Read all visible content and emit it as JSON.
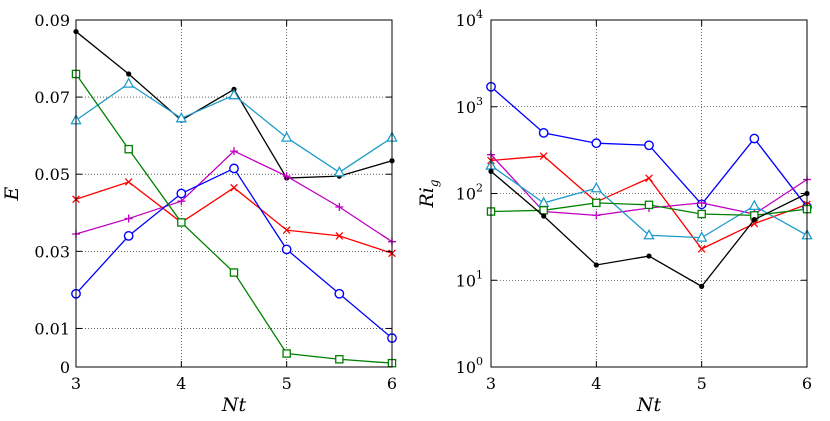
{
  "chart_data": [
    {
      "type": "line",
      "ylabel": "E",
      "xlabel": "Nt",
      "xlim": [
        3,
        6
      ],
      "ylim": [
        0,
        0.09
      ],
      "xticks": [
        "3",
        "4",
        "5",
        "6"
      ],
      "yticks": [
        "0",
        "0.01",
        "0.03",
        "0.05",
        "0.07",
        "0.09"
      ],
      "ytick_values": [
        0,
        0.01,
        0.03,
        0.05,
        0.07,
        0.09
      ],
      "grid": true,
      "x": [
        3,
        3.5,
        4,
        4.5,
        5,
        5.5,
        6
      ],
      "series": [
        {
          "color": "#000000",
          "marker": "dot",
          "values": [
            0.087,
            0.076,
            0.064,
            0.072,
            0.049,
            0.0495,
            0.0535
          ]
        },
        {
          "color": "#1f9bc8",
          "marker": "triangle",
          "values": [
            0.064,
            0.0735,
            0.0645,
            0.0705,
            0.0595,
            0.0505,
            0.0595
          ]
        },
        {
          "color": "#c000c0",
          "marker": "plus",
          "values": [
            0.0345,
            0.0385,
            0.043,
            0.056,
            0.0495,
            0.0415,
            0.0325
          ]
        },
        {
          "color": "#ff0000",
          "marker": "x",
          "values": [
            0.0435,
            0.048,
            0.0375,
            0.0465,
            0.0355,
            0.034,
            0.0295
          ]
        },
        {
          "color": "#0000ff",
          "marker": "circle",
          "values": [
            0.019,
            0.034,
            0.045,
            0.0515,
            0.0305,
            0.019,
            0.0075
          ]
        },
        {
          "color": "#008000",
          "marker": "square",
          "values": [
            0.076,
            0.0565,
            0.0375,
            0.0245,
            0.0035,
            0.002,
            0.001
          ]
        }
      ]
    },
    {
      "type": "line",
      "ylabel": "Ri_g",
      "ylabel_main": "Ri",
      "ylabel_sub": "g",
      "xlabel": "Nt",
      "xlim": [
        3,
        6
      ],
      "ylim": [
        1,
        10000
      ],
      "yscale": "log",
      "xticks": [
        "3",
        "4",
        "5",
        "6"
      ],
      "yticks": [
        {
          "base": "10",
          "exp": "0"
        },
        {
          "base": "10",
          "exp": "1"
        },
        {
          "base": "10",
          "exp": "2"
        },
        {
          "base": "10",
          "exp": "3"
        },
        {
          "base": "10",
          "exp": "4"
        }
      ],
      "ytick_values": [
        1,
        10,
        100,
        1000,
        10000
      ],
      "grid": true,
      "x": [
        3,
        3.5,
        4,
        4.5,
        5,
        5.5,
        6
      ],
      "series": [
        {
          "color": "#0000ff",
          "marker": "circle",
          "values": [
            1700,
            500,
            380,
            360,
            75,
            430,
            70
          ]
        },
        {
          "color": "#ff0000",
          "marker": "x",
          "values": [
            240,
            270,
            80,
            150,
            23,
            45,
            75
          ]
        },
        {
          "color": "#c000c0",
          "marker": "plus",
          "values": [
            280,
            62,
            56,
            68,
            78,
            58,
            145
          ]
        },
        {
          "color": "#1f9bc8",
          "marker": "triangle",
          "values": [
            210,
            78,
            115,
            33,
            31,
            72,
            33
          ]
        },
        {
          "color": "#008000",
          "marker": "square",
          "values": [
            62,
            64,
            78,
            74,
            58,
            56,
            66
          ]
        },
        {
          "color": "#000000",
          "marker": "dot",
          "values": [
            180,
            55,
            15,
            19,
            8.5,
            50,
            100
          ]
        }
      ]
    }
  ]
}
